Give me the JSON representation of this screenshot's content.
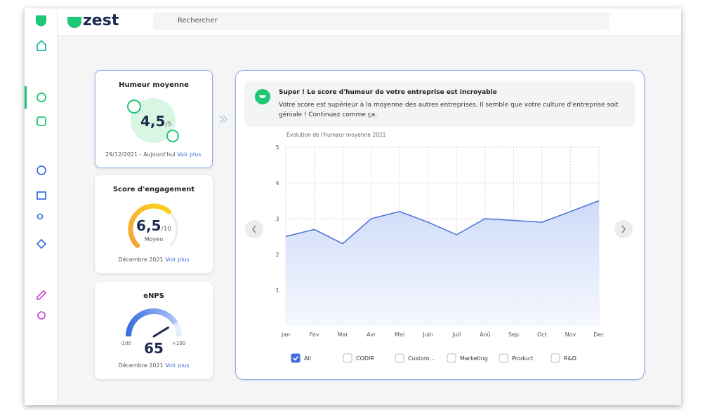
{
  "app": {
    "logo": "zest",
    "search_placeholder": "Rechercher"
  },
  "cards": [
    {
      "title": "Humeur moyenne",
      "score": "4,5",
      "max": "/5",
      "date": "29/12/2021 - Aujourd'hui",
      "link": "Voir plus"
    },
    {
      "title": "Score d'engagement",
      "score": {
        "value": 6.5,
        "label": "6,5"
      },
      "max": {
        "value": 10,
        "label": "/10"
      },
      "level": "Moyen",
      "date": "Décembre 2021",
      "link": "Voir plus"
    },
    {
      "title": "eNPS",
      "score": 65,
      "min": -100,
      "max": {
        "value": 100,
        "label": "+100"
      },
      "date": "Décembre 2021",
      "link": "Voir plus"
    }
  ],
  "banner": {
    "title": "Super ! Le score d'humeur de votre entreprise est incroyable",
    "text": "Votre score est supérieur à la moyenne des autres entreprises. Il semble que votre culture d'entreprise soit géniale ! Continuez comme ça."
  },
  "chart_data": {
    "type": "area",
    "title": "Évolution de l'humeur moyenne 2021",
    "categories": [
      "Jan",
      "Fev",
      "Mar",
      "Avr",
      "Mai",
      "Juin",
      "Juil",
      "Aoû",
      "Sep",
      "Oct",
      "Nov",
      "Dec"
    ],
    "values": [
      2.5,
      2.7,
      2.3,
      3.0,
      3.2,
      2.9,
      2.55,
      3.0,
      2.95,
      2.9,
      3.2,
      3.5
    ],
    "color": "#4a6fd8",
    "ylim": [
      0,
      5
    ],
    "yticks": [
      1,
      2,
      3,
      4,
      5
    ],
    "grid": true
  },
  "filters": [
    {
      "label": "All",
      "checked": true
    },
    {
      "label": "CODIR",
      "checked": false
    },
    {
      "label": "Custom...",
      "checked": false
    },
    {
      "label": "Marketing",
      "checked": false
    },
    {
      "label": "Product",
      "checked": false
    },
    {
      "label": "R&D",
      "checked": false
    }
  ]
}
